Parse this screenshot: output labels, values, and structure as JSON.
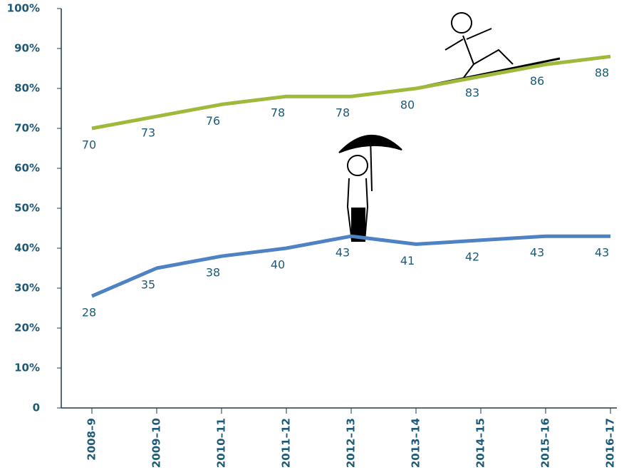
{
  "chart_data": {
    "type": "line",
    "categories": [
      "2008–9",
      "2009–10",
      "2010–11",
      "2011–12",
      "2012–13",
      "2013–14",
      "2014–15",
      "2015–16",
      "2016–17"
    ],
    "series": [
      {
        "color": "#9fb93b",
        "values": [
          70,
          73,
          76,
          78,
          78,
          80,
          83,
          86,
          88
        ]
      },
      {
        "color": "#4f82c3",
        "values": [
          28,
          35,
          38,
          40,
          43,
          41,
          42,
          43,
          43
        ]
      }
    ],
    "ylim": [
      0,
      100
    ],
    "yticks": [
      0,
      {
        "value": 10,
        "label": "10%"
      },
      {
        "value": 20,
        "label": "20%"
      },
      {
        "value": 30,
        "label": "30%"
      },
      {
        "value": 40,
        "label": "40%"
      },
      {
        "value": 50,
        "label": "50%"
      },
      {
        "value": 60,
        "label": "60%"
      },
      {
        "value": 70,
        "label": "70%"
      },
      {
        "value": 80,
        "label": "80%"
      },
      {
        "value": 90,
        "label": "90%"
      },
      {
        "value": 100,
        "label": "100%"
      }
    ],
    "grid": false
  }
}
